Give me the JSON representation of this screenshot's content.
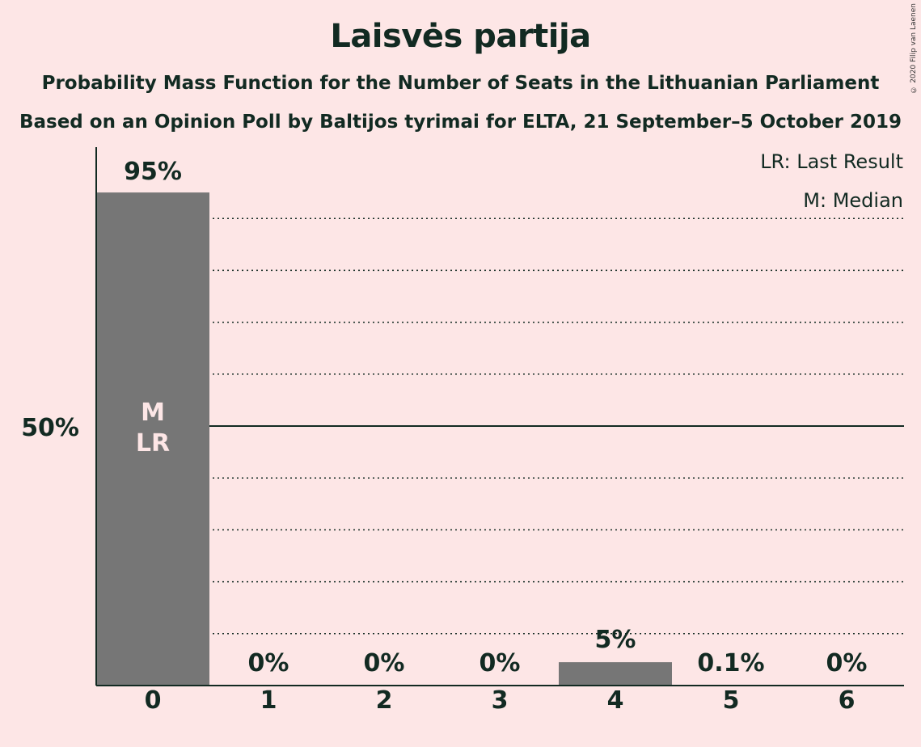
{
  "chart_data": {
    "type": "bar",
    "title": "Laisvės partija",
    "subtitle": "Probability Mass Function for the Number of Seats in the Lithuanian Parliament",
    "subtitle2": "Based on an Opinion Poll by Baltijos tyrimai for ELTA, 21 September–5 October 2019",
    "copyright": "© 2020 Filip van Laenen",
    "legend": [
      "LR: Last Result",
      "M: Median"
    ],
    "categories": [
      "0",
      "1",
      "2",
      "3",
      "4",
      "5",
      "6"
    ],
    "values": [
      95,
      0,
      0,
      0,
      4.5,
      0.1,
      0
    ],
    "labels": [
      "95%",
      "0%",
      "0%",
      "0%",
      "5%",
      "0.1%",
      "0%"
    ],
    "ytick_label": "50%",
    "ylim": [
      0,
      100
    ],
    "median_seat": 0,
    "last_result_seat": 0,
    "bar_marker": [
      "M",
      "LR"
    ],
    "grid": "dotted every 10%, solid at 50%",
    "colors": {
      "background": "#fde6e6",
      "bar": "#767676",
      "text": "#122a22",
      "marker": "#fde6e6"
    }
  }
}
